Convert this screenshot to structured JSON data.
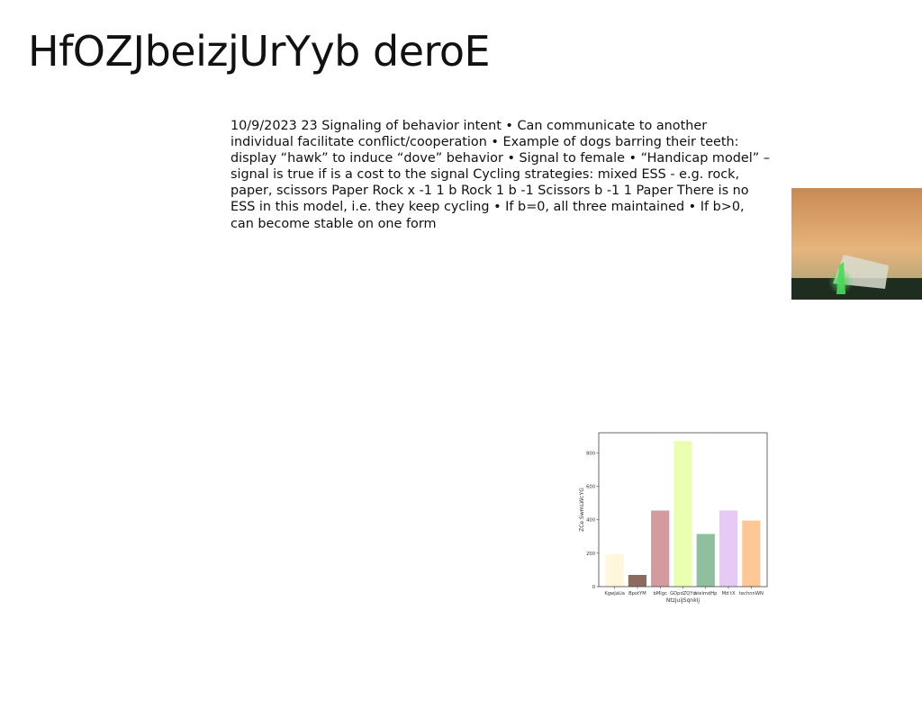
{
  "slide": {
    "title": "HfOZJbeizjUrYyb deroE",
    "body": "10/9/2023 23 Signaling of behavior intent • Can communicate to another individual facilitate conflict/cooperation • Example of dogs barring their teeth: display “hawk” to induce “dove” behavior • Signal to female • “Handicap model” – signal is true if is a cost to the signal Cycling strategies: mixed ESS - e.g. rock, paper, scissors Paper Rock x -1 1 b Rock 1 b -1 Scissors b -1 1 Paper There is no ESS in this model, i.e. they keep cycling • If b=0, all three maintained • If b>0, can become stable on one form"
  },
  "photo": {
    "icon": "tent-photo",
    "colors": {
      "sky_top": "#c98a55",
      "sky_mid": "#e6b47c",
      "sky_low": "#b9a77a",
      "ground": "#1f2d1f",
      "tent": "#d9ddd0",
      "glow": "#4bd85a"
    }
  },
  "chart_data": {
    "type": "bar",
    "categories": [
      "KgwJaUa",
      "BpotYM",
      "bMlgc",
      "GDpdZQYd",
      "ateimdHp",
      "Md tX",
      "technnWN"
    ],
    "values": [
      195,
      70,
      455,
      870,
      315,
      455,
      395
    ],
    "colors": [
      "#fff6dc",
      "#8c6b5e",
      "#d49a9e",
      "#eaffb0",
      "#8fbf9f",
      "#e6c9f5",
      "#fdc896"
    ],
    "xlabel": "NtzjuiJSqnkIj",
    "ylabel": "ZCe SwmLWcYG",
    "ylim": [
      0,
      920
    ],
    "yticks": [
      0,
      200,
      400,
      600,
      800
    ],
    "grid": false
  }
}
